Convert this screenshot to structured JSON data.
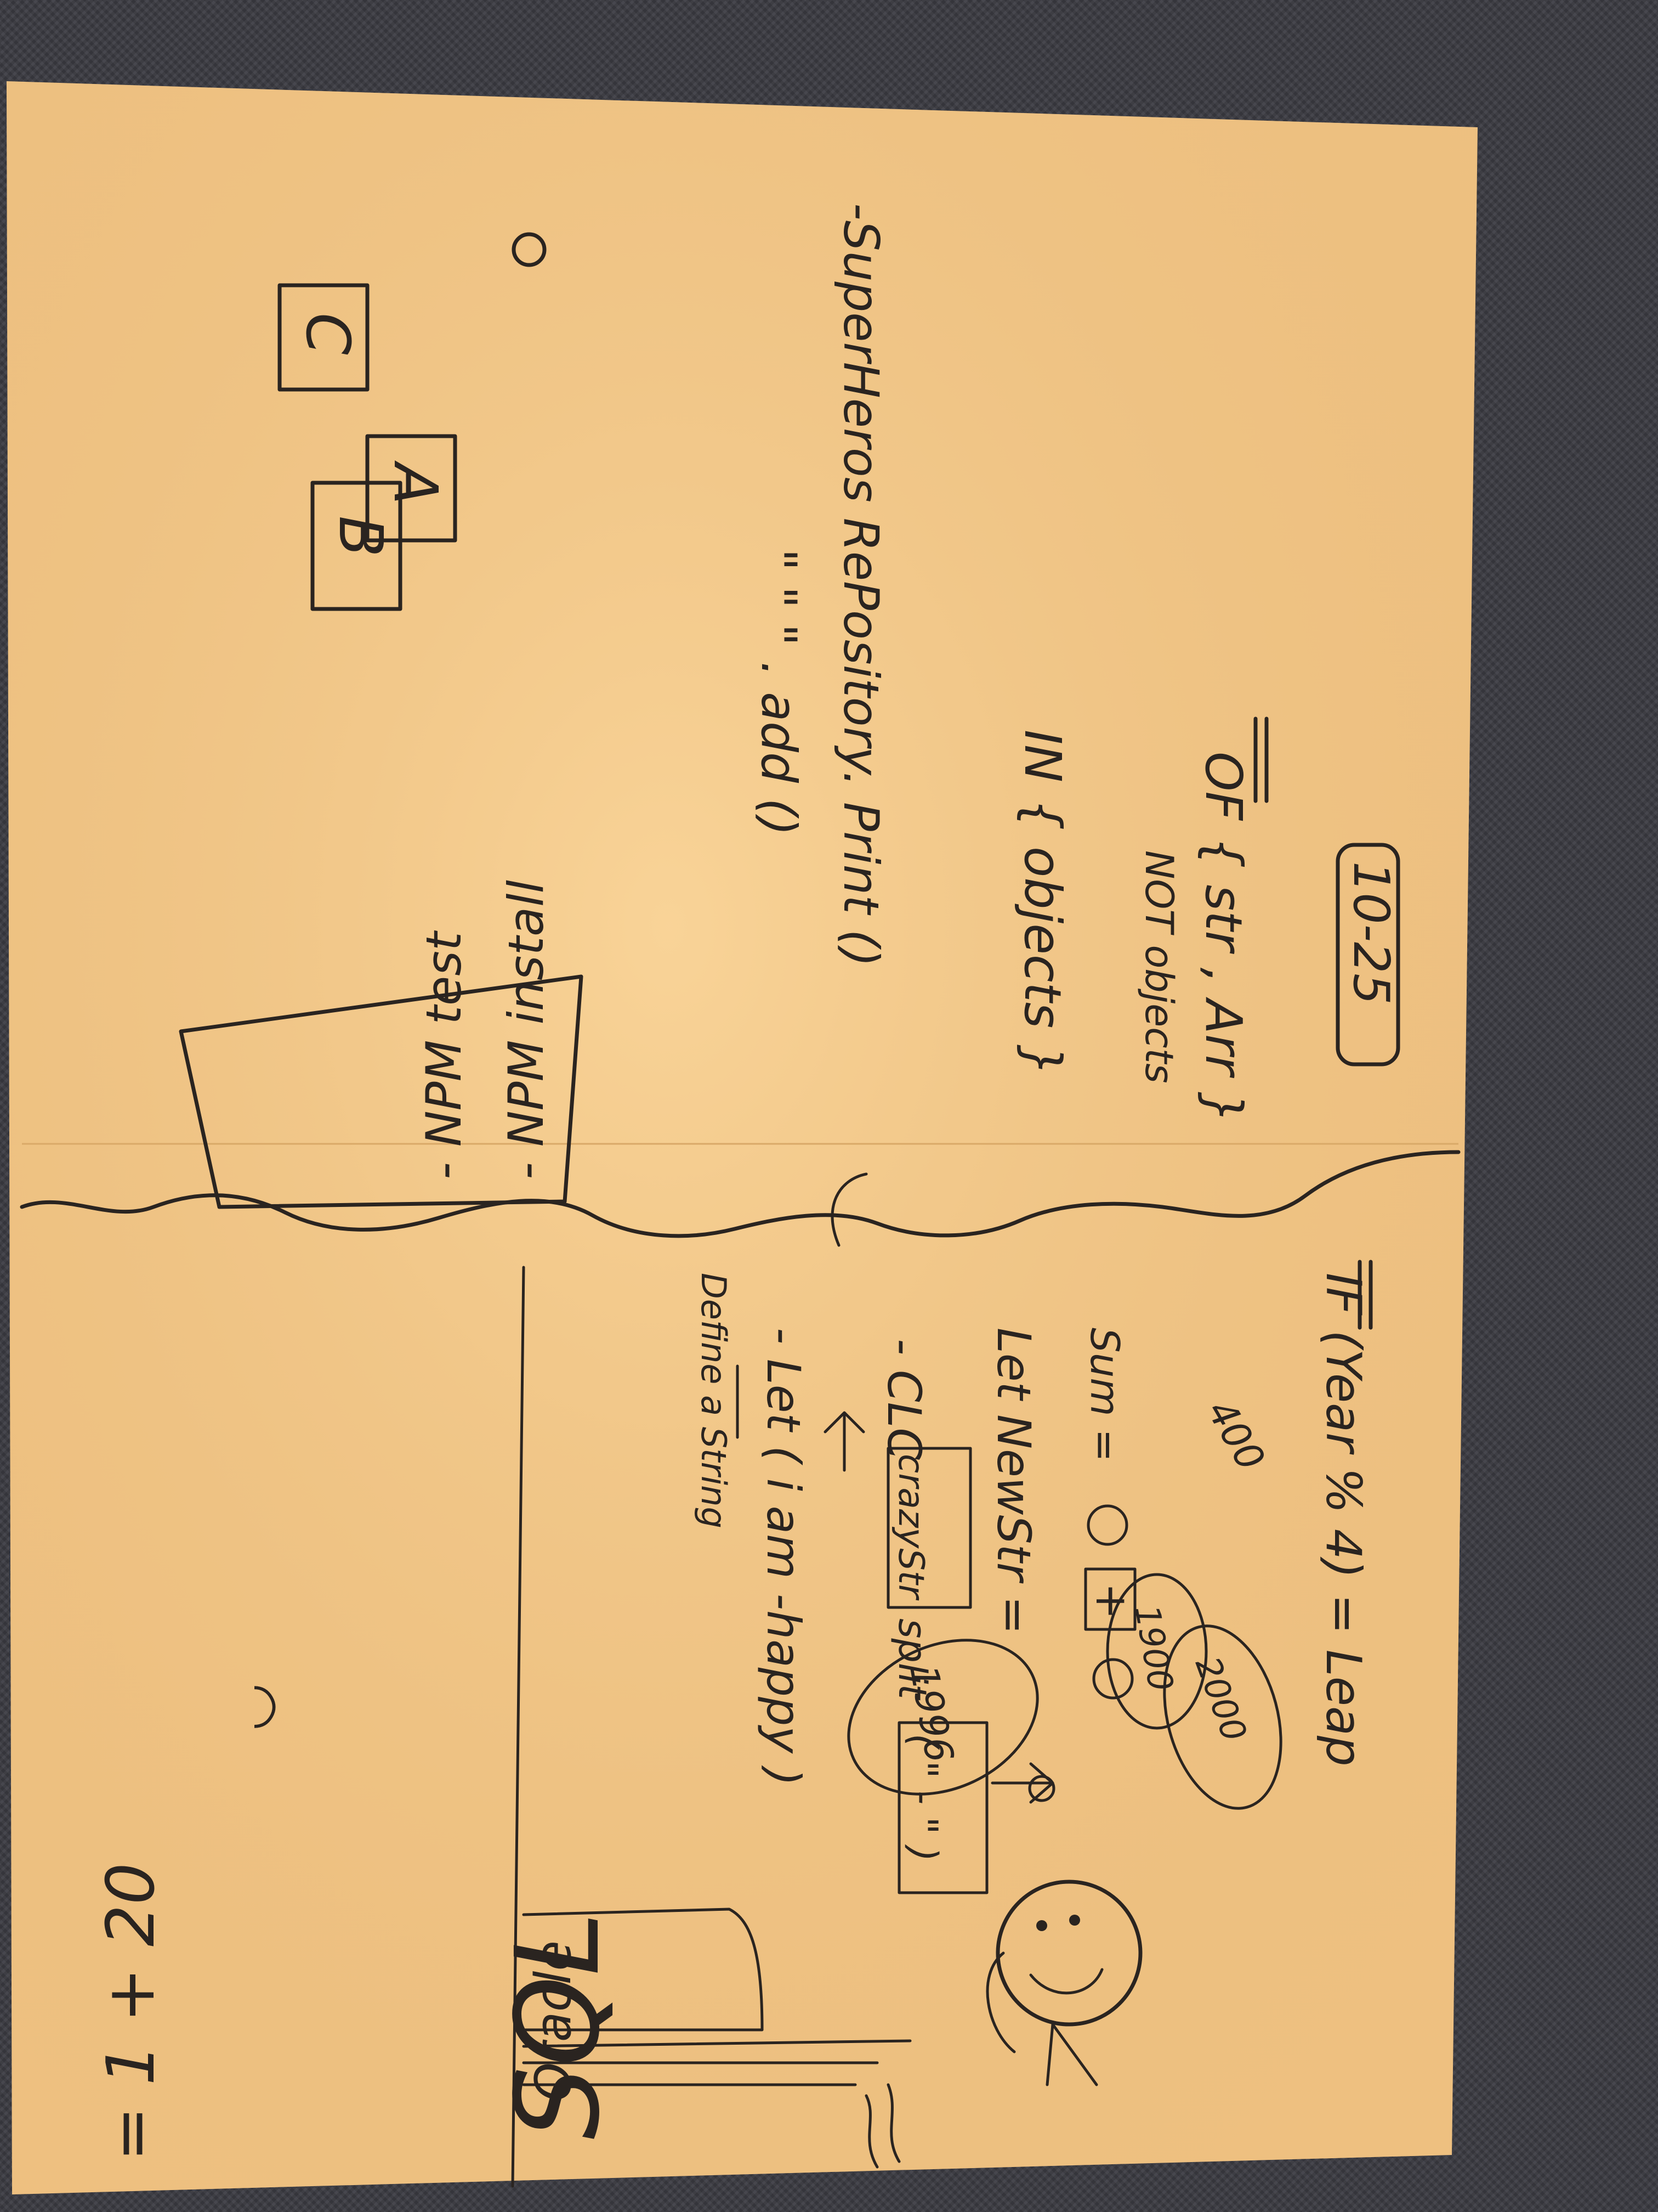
{
  "notes": {
    "date": "10-25",
    "boxes": {
      "c": "C",
      "a": "A",
      "b": "B"
    },
    "of_line": "OF { str , Arr }",
    "not_objects": "NOT objects",
    "in_line": "IN { objects }",
    "repo_print": "-SuperHeros RePository. Print ()",
    "ditto_add": "\"   \"   \"   . add ()",
    "npm_install": "- NPM install",
    "npm_test": "- NPM test",
    "circle_mark": "O",
    "define_title": "Define a String",
    "let_line": "- Let   ( i am -happy )",
    "clc_line": "- CLC",
    "crazy_str": "crazyStr",
    "split_word": "split",
    "split_args": "( \" - \" )",
    "let_newstr": "Let  NewStr  =",
    "sum_line": "Sum =",
    "plus_box": "+",
    "if_line": "IF (Year % 4) = Leap",
    "year_400": "400",
    "year_1900": "1900",
    "year_2000": "2000",
    "year_1996": "1996",
    "oracle": "Oracle",
    "sql": "SQL",
    "eq_line": "= 1 + 20",
    "cup_mark": "◡"
  }
}
